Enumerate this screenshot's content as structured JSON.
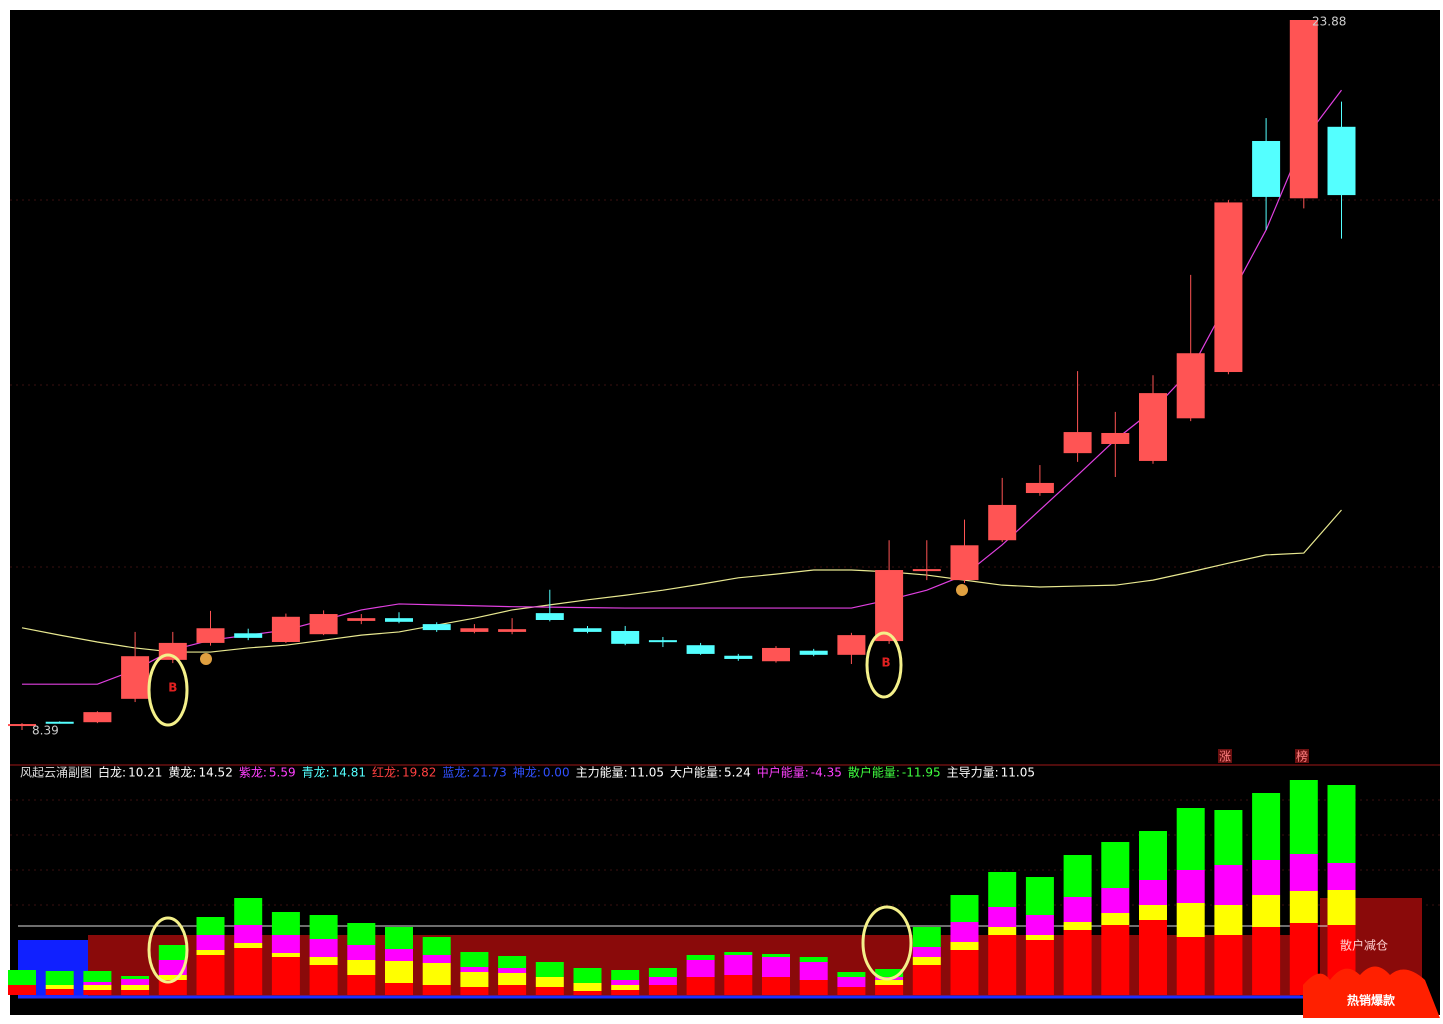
{
  "chart_data": [
    {
      "type": "candlestick",
      "high_label": 23.88,
      "low_label": 8.39,
      "ylim": [
        8.39,
        23.88
      ],
      "up_color": "#ff5454",
      "down_color": "#54ffff",
      "open": [
        8.5,
        8.57,
        8.56,
        9.07,
        9.92,
        10.29,
        10.5,
        10.31,
        10.48,
        10.77,
        10.83,
        10.7,
        10.53,
        10.53,
        10.94,
        10.61,
        10.55,
        10.35,
        10.24,
        10.01,
        9.89,
        10.12,
        10.03,
        10.33,
        11.86,
        11.66,
        12.53,
        13.56,
        14.43,
        14.63,
        14.26,
        15.19,
        16.2,
        21.24,
        19.99,
        21.55
      ],
      "high": [
        8.54,
        8.58,
        8.8,
        10.53,
        10.53,
        10.99,
        10.6,
        10.93,
        11.0,
        10.92,
        10.96,
        10.74,
        10.7,
        10.83,
        11.45,
        10.66,
        10.66,
        10.42,
        10.29,
        10.05,
        10.22,
        10.16,
        10.51,
        12.53,
        12.53,
        12.98,
        13.89,
        14.17,
        16.22,
        15.33,
        16.13,
        18.32,
        19.95,
        21.74,
        23.88,
        22.1
      ],
      "low": [
        8.39,
        8.53,
        8.54,
        9.0,
        9.85,
        10.23,
        10.35,
        10.29,
        10.46,
        10.7,
        10.72,
        10.53,
        10.5,
        10.48,
        10.76,
        10.5,
        10.24,
        10.2,
        10.03,
        9.9,
        9.86,
        10.0,
        9.83,
        10.27,
        11.66,
        11.6,
        12.49,
        13.5,
        14.24,
        13.91,
        14.2,
        15.13,
        16.15,
        19.3,
        19.77,
        19.11
      ],
      "close": [
        8.52,
        8.55,
        8.78,
        10.0,
        10.29,
        10.61,
        10.4,
        10.86,
        10.92,
        10.83,
        10.75,
        10.57,
        10.61,
        10.59,
        10.79,
        10.53,
        10.27,
        10.31,
        10.05,
        9.94,
        10.18,
        10.03,
        10.46,
        11.88,
        11.9,
        12.42,
        13.3,
        13.78,
        14.89,
        14.87,
        15.74,
        16.61,
        19.9,
        20.02,
        23.88,
        20.06
      ],
      "lines": [
        {
          "color": "#e8e890",
          "values": [
            10.62,
            10.46,
            10.31,
            10.18,
            10.09,
            10.09,
            10.18,
            10.24,
            10.35,
            10.46,
            10.53,
            10.68,
            10.83,
            11.01,
            11.12,
            11.23,
            11.33,
            11.44,
            11.57,
            11.71,
            11.79,
            11.88,
            11.88,
            11.84,
            11.77,
            11.66,
            11.55,
            11.51,
            11.53,
            11.55,
            11.66,
            11.84,
            12.03,
            12.21,
            12.25,
            13.19
          ]
        },
        {
          "color": "#e040e0",
          "values": [
            9.39,
            9.39,
            9.39,
            9.7,
            10.14,
            10.35,
            10.46,
            10.57,
            10.79,
            11.01,
            11.14,
            11.12,
            11.1,
            11.08,
            11.07,
            11.06,
            11.05,
            11.05,
            11.05,
            11.05,
            11.05,
            11.05,
            11.05,
            11.23,
            11.44,
            11.77,
            12.43,
            13.19,
            13.95,
            14.72,
            15.37,
            16.24,
            17.77,
            19.3,
            21.26,
            22.35
          ]
        }
      ],
      "buy_marks": [
        {
          "index": 4,
          "label": "B"
        },
        {
          "index": 23,
          "label": "B"
        }
      ],
      "tags": [
        "涨",
        "榜"
      ]
    },
    {
      "type": "stacked_bar",
      "title": "风起云涌副图",
      "indicators": [
        {
          "label": "白龙:",
          "value": 10.21,
          "color": "#ffffff"
        },
        {
          "label": "黄龙:",
          "value": 14.52,
          "color": "#ffffff"
        },
        {
          "label": "紫龙:",
          "value": 5.59,
          "color": "#ff40ff"
        },
        {
          "label": "青龙:",
          "value": 14.81,
          "color": "#54ffff"
        },
        {
          "label": "红龙:",
          "value": 19.82,
          "color": "#ff4040"
        },
        {
          "label": "蓝龙:",
          "value": 21.73,
          "color": "#3050ff"
        },
        {
          "label": "神龙:",
          "value": {
            "value": 0,
            "label": "0.00"
          },
          "color": "#3050ff"
        },
        {
          "label": "主力能量:",
          "value": 11.05,
          "color": "#ffffff"
        },
        {
          "label": "大户能量:",
          "value": 5.24,
          "color": "#ffffff"
        },
        {
          "label": "中户能量:",
          "value": -4.35,
          "color": "#ff40ff"
        },
        {
          "label": "散户能量:",
          "value": -11.95,
          "color": "#40ff40"
        },
        {
          "label": "主导力量:",
          "value": 11.05,
          "color": "#ffffff"
        }
      ],
      "ylim": [
        0,
        220
      ],
      "series": [
        {
          "color": "#ff0000",
          "values": [
            10,
            6,
            5,
            5,
            15,
            40,
            47,
            38,
            30,
            20,
            12,
            10,
            8,
            10,
            8,
            4,
            5,
            10,
            18,
            20,
            18,
            15,
            8,
            10,
            30,
            45,
            60,
            55,
            65,
            70,
            75,
            58,
            60,
            68,
            72,
            70
          ]
        },
        {
          "color": "#ffff00",
          "values": [
            0,
            4,
            5,
            5,
            5,
            5,
            5,
            4,
            8,
            15,
            22,
            22,
            15,
            12,
            10,
            8,
            5,
            0,
            0,
            0,
            0,
            0,
            0,
            5,
            8,
            8,
            8,
            5,
            8,
            12,
            15,
            34,
            30,
            32,
            32,
            35
          ]
        },
        {
          "color": "#ff00ff",
          "values": [
            0,
            0,
            3,
            6,
            15,
            15,
            18,
            18,
            18,
            15,
            12,
            8,
            5,
            5,
            0,
            0,
            5,
            8,
            17,
            20,
            20,
            18,
            10,
            3,
            10,
            20,
            20,
            20,
            25,
            25,
            25,
            33,
            40,
            35,
            37,
            27
          ]
        },
        {
          "color": "#00ff00",
          "values": [
            15,
            14,
            11,
            3,
            15,
            18,
            27,
            23,
            24,
            22,
            22,
            18,
            15,
            12,
            15,
            15,
            10,
            9,
            5,
            3,
            3,
            5,
            5,
            8,
            20,
            27,
            35,
            38,
            42,
            46,
            49,
            62,
            55,
            67,
            74,
            78
          ]
        }
      ],
      "note": "散户减仓",
      "badge": "热销爆款"
    }
  ]
}
